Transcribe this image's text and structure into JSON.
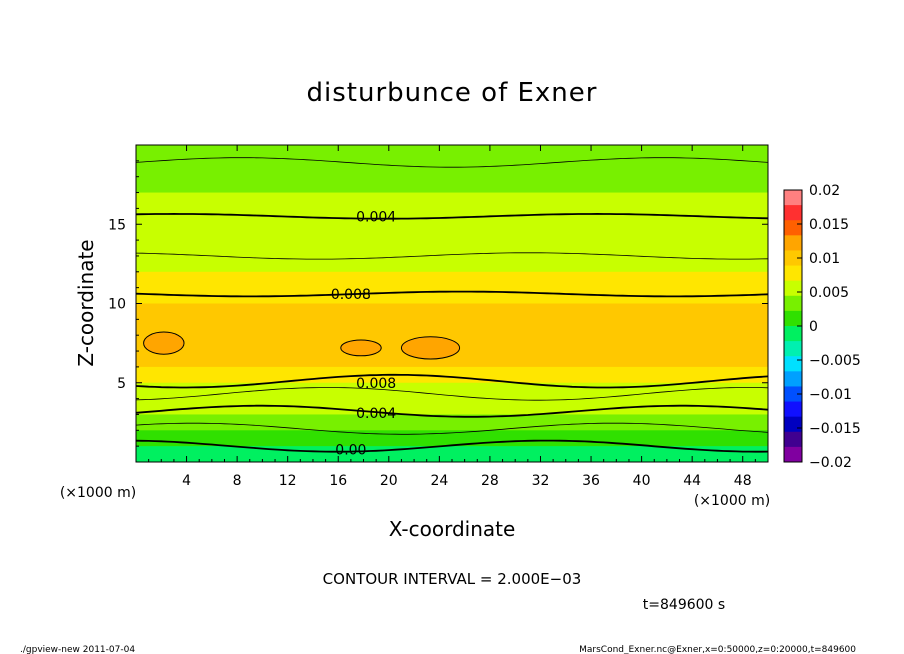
{
  "title": "disturbunce of Exner",
  "x_unit_left": "(×1000 m)",
  "x_unit_right": "(×1000 m)",
  "contour_interval": "CONTOUR INTERVAL = 2.000E−03",
  "time_label": "t=849600 s",
  "footer_left": "./gpview-new   2011-07-04",
  "footer_right": "MarsCond_Exner.nc@Exner,x=0:50000,z=0:20000,t=849600",
  "chart_data": {
    "type": "contour",
    "title": "disturbunce of Exner",
    "xlabel": "X-coordinate",
    "ylabel": "Z-coordinate",
    "xlim": [
      0,
      50
    ],
    "ylim": [
      0,
      20
    ],
    "xticks": [
      4,
      8,
      12,
      16,
      20,
      24,
      28,
      32,
      36,
      40,
      44,
      48
    ],
    "yticks": [
      5,
      10,
      15
    ],
    "contour_interval": 0.002,
    "contour_labels": [
      {
        "text": "0.004",
        "x": 19,
        "z": 15.5
      },
      {
        "text": "0.008",
        "x": 17,
        "z": 10.6
      },
      {
        "text": "0.008",
        "x": 19,
        "z": 5.0
      },
      {
        "text": "0.004",
        "x": 19,
        "z": 3.1
      },
      {
        "text": "0.00",
        "x": 17,
        "z": 0.8
      }
    ],
    "colorbar": {
      "ticks": [
        "0.02",
        "0.015",
        "0.01",
        "0.005",
        "0",
        "−0.005",
        "−0.01",
        "−0.015",
        "−0.02"
      ],
      "range": [
        -0.02,
        0.02
      ],
      "colors": [
        "#ff8080",
        "#ff3030",
        "#ff6000",
        "#ffa500",
        "#ffc800",
        "#ffe600",
        "#c8ff00",
        "#78f000",
        "#30e000",
        "#00f060",
        "#00f0b0",
        "#00e0ff",
        "#00a0ff",
        "#0050ff",
        "#1010ff",
        "#0000c0",
        "#400090",
        "#8000a0"
      ]
    },
    "bands": [
      {
        "z": 20,
        "value": 0.0025
      },
      {
        "z": 19,
        "value": 0.003
      },
      {
        "z": 18,
        "value": 0.0035
      },
      {
        "z": 17,
        "value": 0.004
      },
      {
        "z": 16,
        "value": 0.0045
      },
      {
        "z": 15,
        "value": 0.005
      },
      {
        "z": 14,
        "value": 0.0055
      },
      {
        "z": 13,
        "value": 0.006
      },
      {
        "z": 12,
        "value": 0.0065
      },
      {
        "z": 11,
        "value": 0.0075
      },
      {
        "z": 10,
        "value": 0.0085
      },
      {
        "z": 9,
        "value": 0.009
      },
      {
        "z": 8,
        "value": 0.0095
      },
      {
        "z": 7,
        "value": 0.0095
      },
      {
        "z": 6,
        "value": 0.009
      },
      {
        "z": 5,
        "value": 0.0075
      },
      {
        "z": 4,
        "value": 0.006
      },
      {
        "z": 3,
        "value": 0.0045
      },
      {
        "z": 2,
        "value": 0.003
      },
      {
        "z": 1,
        "value": 0.0015
      },
      {
        "z": 0,
        "value": 0.0
      }
    ],
    "contours": [
      {
        "value": 0.002,
        "z": 18.9,
        "amp": 0.3
      },
      {
        "value": 0.004,
        "z": 15.5,
        "amp": 0.15
      },
      {
        "value": 0.006,
        "z": 13.0,
        "amp": 0.2
      },
      {
        "value": 0.008,
        "z": 10.6,
        "amp": 0.15
      },
      {
        "value": 0.008,
        "z": 5.1,
        "amp": 0.4
      },
      {
        "value": 0.006,
        "z": 4.3,
        "amp": 0.4
      },
      {
        "value": 0.004,
        "z": 3.2,
        "amp": 0.35
      },
      {
        "value": 0.002,
        "z": 2.1,
        "amp": 0.35
      },
      {
        "value": 0.0,
        "z": 1.0,
        "amp": 0.35
      }
    ],
    "maxima": [
      {
        "x": 2.2,
        "z": 7.5,
        "rx": 1.6,
        "rz": 0.7
      },
      {
        "x": 17.8,
        "z": 7.2,
        "rx": 1.6,
        "rz": 0.5
      },
      {
        "x": 23.3,
        "z": 7.2,
        "rx": 2.3,
        "rz": 0.7
      }
    ]
  }
}
